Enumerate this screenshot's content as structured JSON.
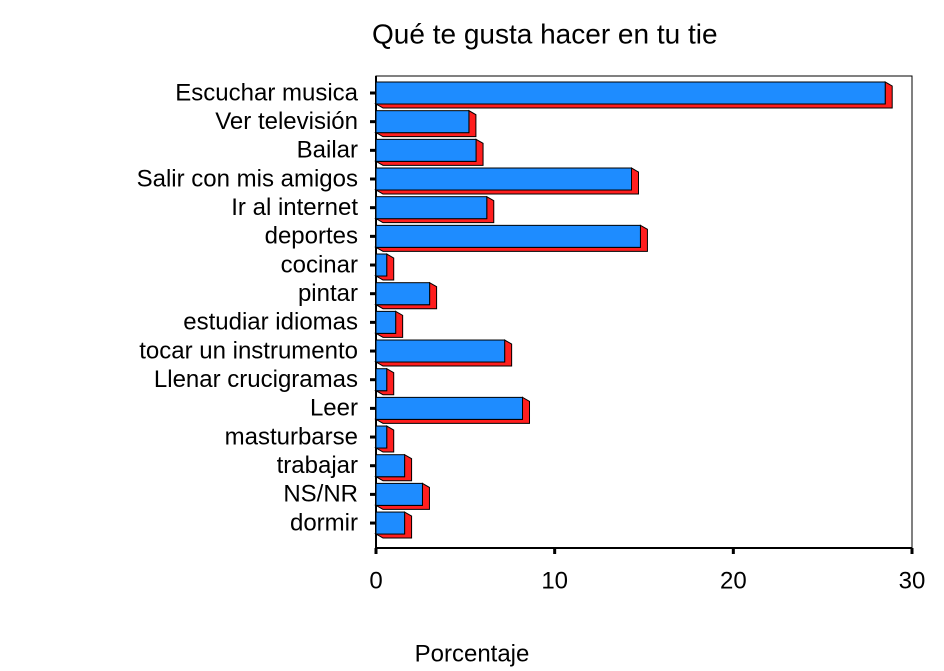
{
  "chart_data": {
    "type": "barh",
    "title": "Qué te gusta hacer en tu tie",
    "xlabel": "Porcentaje",
    "categories": [
      "Escuchar musica",
      "Ver televisión",
      "Bailar",
      "Salir con mis amigos",
      "Ir al internet",
      "deportes",
      "cocinar",
      "pintar",
      "estudiar idiomas",
      "tocar un instrumento",
      "Llenar crucigramas",
      "Leer",
      "masturbarse",
      "trabajar",
      "NS/NR",
      "dormir"
    ],
    "values": [
      28.5,
      5.2,
      5.6,
      14.3,
      6.2,
      14.8,
      0.6,
      3.0,
      1.1,
      7.2,
      0.6,
      8.2,
      0.6,
      1.6,
      2.6,
      1.6
    ],
    "color": "#1e8cff",
    "side_color": "#ff1e1e",
    "xlim": [
      0,
      30
    ],
    "xticks": [
      0,
      10,
      20,
      30
    ]
  }
}
